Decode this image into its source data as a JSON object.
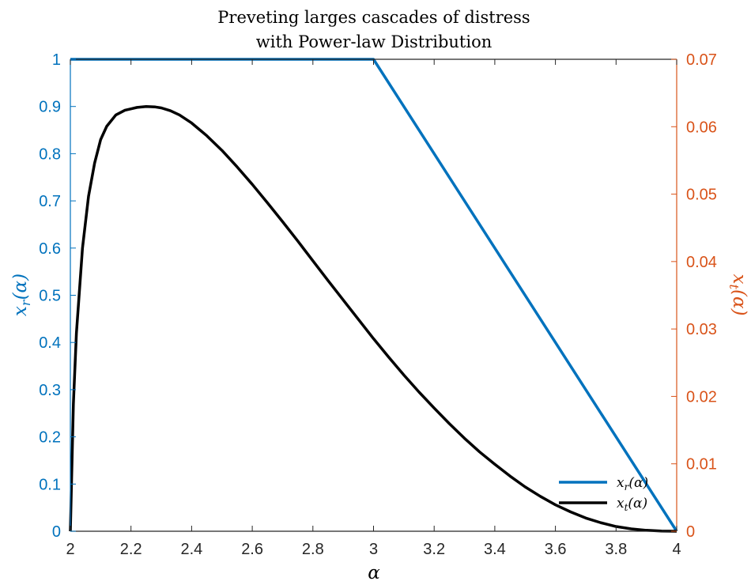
{
  "chart_data": {
    "type": "line",
    "title": [
      "Preveting larges cascades of distress",
      "with Power-law Distribution"
    ],
    "xlabel": "α",
    "ylabel_left": "x_r(α)",
    "ylabel_right": "x_t(α)",
    "xlim": [
      2,
      4
    ],
    "ylim_left": [
      0,
      1
    ],
    "ylim_right": [
      0,
      0.07
    ],
    "x_ticks": [
      "2",
      "2.2",
      "2.4",
      "2.6",
      "2.8",
      "3",
      "3.2",
      "3.4",
      "3.6",
      "3.8",
      "4"
    ],
    "y_left_ticks": [
      "0",
      "0.1",
      "0.2",
      "0.3",
      "0.4",
      "0.5",
      "0.6",
      "0.7",
      "0.8",
      "0.9",
      "1"
    ],
    "y_right_ticks": [
      "0",
      "0.01",
      "0.02",
      "0.03",
      "0.04",
      "0.05",
      "0.06",
      "0.07"
    ],
    "grid": false,
    "legend_position": "bottom-right",
    "colors": {
      "left_axis": "#0072BD",
      "right_axis": "#D95319",
      "xr_line": "#0072BD",
      "xt_line": "#000000",
      "x_axis": "#262626"
    },
    "series": [
      {
        "name": "x_r(α)",
        "axis": "left",
        "x": [
          2,
          3,
          4
        ],
        "y": [
          1,
          1,
          0
        ]
      },
      {
        "name": "x_t(α)",
        "axis": "left",
        "x": [
          2,
          2.01,
          2.02,
          2.04,
          2.06,
          2.08,
          2.1,
          2.12,
          2.15,
          2.18,
          2.2,
          2.22,
          2.25,
          2.28,
          2.3,
          2.33,
          2.36,
          2.4,
          2.45,
          2.5,
          2.55,
          2.6,
          2.65,
          2.7,
          2.75,
          2.8,
          2.85,
          2.9,
          2.95,
          3.0,
          3.05,
          3.1,
          3.15,
          3.2,
          3.25,
          3.3,
          3.35,
          3.4,
          3.45,
          3.5,
          3.55,
          3.6,
          3.65,
          3.7,
          3.75,
          3.8,
          3.85,
          3.9,
          3.95,
          4.0
        ],
        "y": [
          0,
          0.27,
          0.42,
          0.6,
          0.71,
          0.78,
          0.83,
          0.858,
          0.882,
          0.892,
          0.895,
          0.898,
          0.9,
          0.899,
          0.897,
          0.891,
          0.882,
          0.865,
          0.838,
          0.807,
          0.772,
          0.735,
          0.696,
          0.656,
          0.615,
          0.573,
          0.531,
          0.49,
          0.449,
          0.408,
          0.369,
          0.331,
          0.295,
          0.261,
          0.228,
          0.197,
          0.168,
          0.142,
          0.117,
          0.094,
          0.074,
          0.056,
          0.041,
          0.028,
          0.018,
          0.01,
          0.005,
          0.002,
          0.0005,
          0
        ]
      }
    ]
  }
}
